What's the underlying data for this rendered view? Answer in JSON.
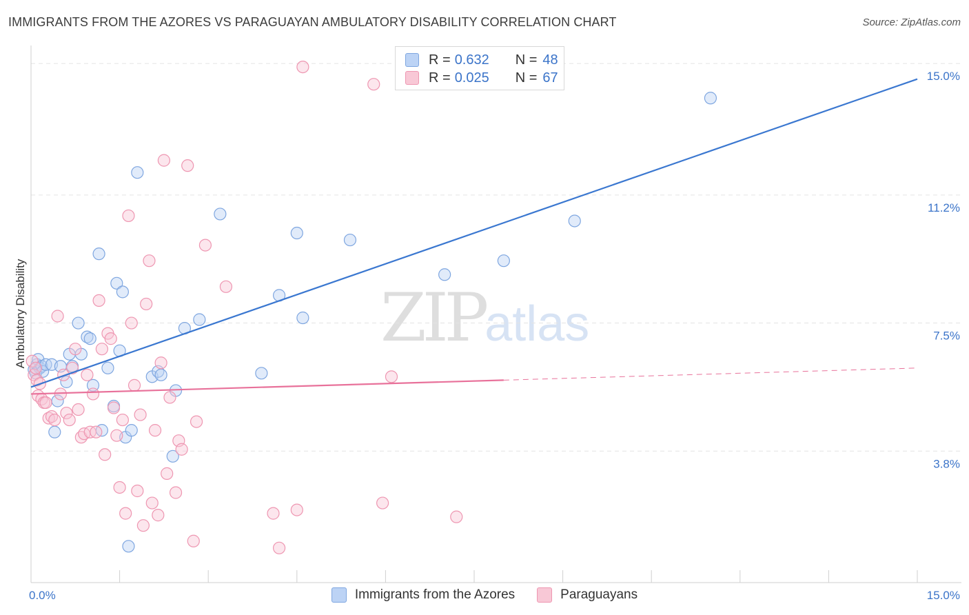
{
  "title": "IMMIGRANTS FROM THE AZORES VS PARAGUAYAN AMBULATORY DISABILITY CORRELATION CHART",
  "source": "Source: ZipAtlas.com",
  "watermark": {
    "zip": "ZIP",
    "atlas": "atlas"
  },
  "legend": {
    "r_label": "R =",
    "n_label": "N =",
    "rows": [
      {
        "r": "0.632",
        "n": "48",
        "fill": "#bcd3f5",
        "stroke": "#7ea6e0"
      },
      {
        "r": "0.025",
        "n": "67",
        "fill": "#f8c8d6",
        "stroke": "#ee96b1"
      }
    ]
  },
  "bottom_legend": [
    "Immigrants from the Azores",
    "Paraguayans"
  ],
  "chart_data": {
    "type": "scatter",
    "title": "IMMIGRANTS FROM THE AZORES VS PARAGUAYAN AMBULATORY DISABILITY CORRELATION CHART",
    "xlabel": "",
    "ylabel": "Ambulatory Disability",
    "xlim": [
      0,
      15
    ],
    "ylim": [
      0,
      15.4
    ],
    "x_tick_labels": [
      "0.0%",
      "15.0%"
    ],
    "y_ticks": [
      3.8,
      7.5,
      11.2,
      15.0
    ],
    "y_tick_labels": [
      "3.8%",
      "7.5%",
      "11.2%",
      "15.0%"
    ],
    "colors": {
      "blue": "#3a77d0",
      "pink": "#e8719a",
      "grid": "#e3e3e3"
    },
    "series": [
      {
        "name": "Immigrants from the Azores",
        "color": "#7ea6e0",
        "points": [
          [
            0.05,
            6.15
          ],
          [
            0.08,
            6.05
          ],
          [
            0.1,
            6.3
          ],
          [
            0.12,
            6.45
          ],
          [
            0.15,
            6.2
          ],
          [
            0.18,
            6.25
          ],
          [
            0.2,
            6.1
          ],
          [
            0.25,
            6.3
          ],
          [
            0.35,
            6.3
          ],
          [
            0.4,
            4.35
          ],
          [
            0.45,
            5.25
          ],
          [
            0.5,
            6.25
          ],
          [
            0.6,
            5.8
          ],
          [
            0.65,
            6.6
          ],
          [
            0.7,
            6.25
          ],
          [
            0.8,
            7.5
          ],
          [
            0.85,
            6.6
          ],
          [
            0.95,
            7.1
          ],
          [
            1.0,
            7.05
          ],
          [
            1.05,
            5.7
          ],
          [
            1.15,
            9.5
          ],
          [
            1.2,
            4.4
          ],
          [
            1.3,
            6.2
          ],
          [
            1.4,
            5.1
          ],
          [
            1.45,
            8.65
          ],
          [
            1.5,
            6.7
          ],
          [
            1.55,
            8.4
          ],
          [
            1.6,
            4.2
          ],
          [
            1.65,
            1.05
          ],
          [
            1.7,
            4.4
          ],
          [
            1.8,
            11.85
          ],
          [
            2.05,
            5.95
          ],
          [
            2.15,
            6.1
          ],
          [
            2.2,
            6.0
          ],
          [
            2.4,
            3.65
          ],
          [
            2.45,
            5.55
          ],
          [
            2.6,
            7.35
          ],
          [
            2.85,
            7.6
          ],
          [
            3.2,
            10.65
          ],
          [
            3.9,
            6.05
          ],
          [
            4.2,
            8.3
          ],
          [
            4.5,
            10.1
          ],
          [
            4.6,
            7.65
          ],
          [
            5.4,
            9.9
          ],
          [
            7.0,
            8.9
          ],
          [
            8.0,
            9.3
          ],
          [
            9.2,
            10.45
          ],
          [
            11.5,
            14.0
          ]
        ]
      },
      {
        "name": "Paraguayans",
        "color": "#ee96b1",
        "points": [
          [
            0.02,
            6.4
          ],
          [
            0.05,
            6.0
          ],
          [
            0.08,
            6.2
          ],
          [
            0.1,
            5.85
          ],
          [
            0.12,
            5.4
          ],
          [
            0.15,
            5.75
          ],
          [
            0.18,
            5.3
          ],
          [
            0.22,
            5.2
          ],
          [
            0.25,
            5.2
          ],
          [
            0.3,
            4.75
          ],
          [
            0.35,
            4.8
          ],
          [
            0.4,
            4.7
          ],
          [
            0.45,
            7.7
          ],
          [
            0.5,
            5.45
          ],
          [
            0.55,
            6.0
          ],
          [
            0.6,
            4.9
          ],
          [
            0.65,
            4.7
          ],
          [
            0.7,
            6.2
          ],
          [
            0.75,
            6.75
          ],
          [
            0.8,
            5.0
          ],
          [
            0.85,
            4.2
          ],
          [
            0.9,
            4.3
          ],
          [
            0.95,
            6.0
          ],
          [
            1.0,
            4.35
          ],
          [
            1.05,
            5.45
          ],
          [
            1.1,
            4.35
          ],
          [
            1.15,
            8.15
          ],
          [
            1.2,
            6.75
          ],
          [
            1.25,
            3.7
          ],
          [
            1.3,
            7.2
          ],
          [
            1.35,
            7.05
          ],
          [
            1.4,
            5.05
          ],
          [
            1.45,
            4.25
          ],
          [
            1.5,
            2.75
          ],
          [
            1.55,
            4.7
          ],
          [
            1.6,
            2.0
          ],
          [
            1.65,
            10.6
          ],
          [
            1.7,
            7.5
          ],
          [
            1.75,
            5.7
          ],
          [
            1.8,
            2.65
          ],
          [
            1.85,
            4.85
          ],
          [
            1.9,
            1.65
          ],
          [
            1.95,
            8.05
          ],
          [
            2.0,
            9.3
          ],
          [
            2.05,
            2.3
          ],
          [
            2.1,
            4.4
          ],
          [
            2.15,
            1.95
          ],
          [
            2.2,
            6.35
          ],
          [
            2.25,
            12.2
          ],
          [
            2.3,
            3.15
          ],
          [
            2.35,
            5.35
          ],
          [
            2.45,
            2.6
          ],
          [
            2.5,
            4.1
          ],
          [
            2.55,
            3.85
          ],
          [
            2.65,
            12.05
          ],
          [
            2.75,
            1.2
          ],
          [
            2.8,
            4.65
          ],
          [
            2.95,
            9.75
          ],
          [
            3.3,
            8.55
          ],
          [
            4.1,
            2.0
          ],
          [
            4.2,
            1.0
          ],
          [
            4.5,
            2.1
          ],
          [
            4.6,
            14.9
          ],
          [
            5.8,
            14.4
          ],
          [
            5.95,
            2.3
          ],
          [
            6.1,
            5.95
          ],
          [
            7.2,
            1.9
          ]
        ]
      }
    ],
    "trendlines": [
      {
        "series": "Immigrants from the Azores",
        "x": [
          0,
          15
        ],
        "y": [
          5.65,
          14.55
        ],
        "dashed_from": null
      },
      {
        "series": "Paraguayans",
        "x": [
          0,
          15
        ],
        "y": [
          5.45,
          6.2
        ],
        "dashed_from": 8.0
      }
    ]
  }
}
